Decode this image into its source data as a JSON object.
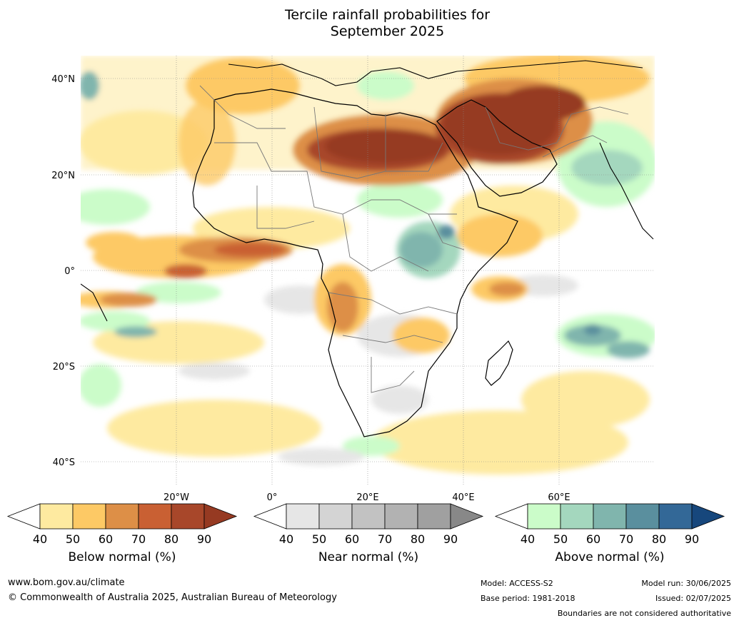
{
  "title_line1": "Tercile rainfall probabilities for",
  "title_line2": "September 2025",
  "axes": {
    "lat_labels": [
      "40°N",
      "20°N",
      "0°",
      "20°S",
      "40°S"
    ],
    "lon_labels": [
      "20°W",
      "0°",
      "20°E",
      "40°E",
      "60°E"
    ]
  },
  "colorbars": [
    {
      "label": "Below normal (%)",
      "ticks": [
        "40",
        "50",
        "60",
        "70",
        "80",
        "90"
      ],
      "colors": [
        "#ffffff",
        "#feeaa0",
        "#fdc965",
        "#dd8f47",
        "#c96033",
        "#a8472a",
        "#963a22"
      ]
    },
    {
      "label": "Near normal (%)",
      "ticks": [
        "40",
        "50",
        "60",
        "70",
        "80",
        "90"
      ],
      "colors": [
        "#ffffff",
        "#e6e6e6",
        "#d4d4d4",
        "#c2c2c2",
        "#b2b2b2",
        "#a0a0a0",
        "#888888"
      ]
    },
    {
      "label": "Above normal (%)",
      "ticks": [
        "40",
        "50",
        "60",
        "70",
        "80",
        "90"
      ],
      "colors": [
        "#ffffff",
        "#cbfcc9",
        "#a4d7be",
        "#80b5ad",
        "#5a8f9e",
        "#336897",
        "#17477c"
      ]
    }
  ],
  "footer": {
    "website": "www.bom.gov.au/climate",
    "copyright": "© Commonwealth of Australia 2025, Australian Bureau of Meteorology",
    "model": "Model: ACCESS-S2",
    "base_period": "Base period: 1981-2018",
    "model_run": "Model run: 30/06/2025",
    "issued": "Issued: 02/07/2025",
    "disclaimer": "Boundaries are not considered authoritative"
  }
}
